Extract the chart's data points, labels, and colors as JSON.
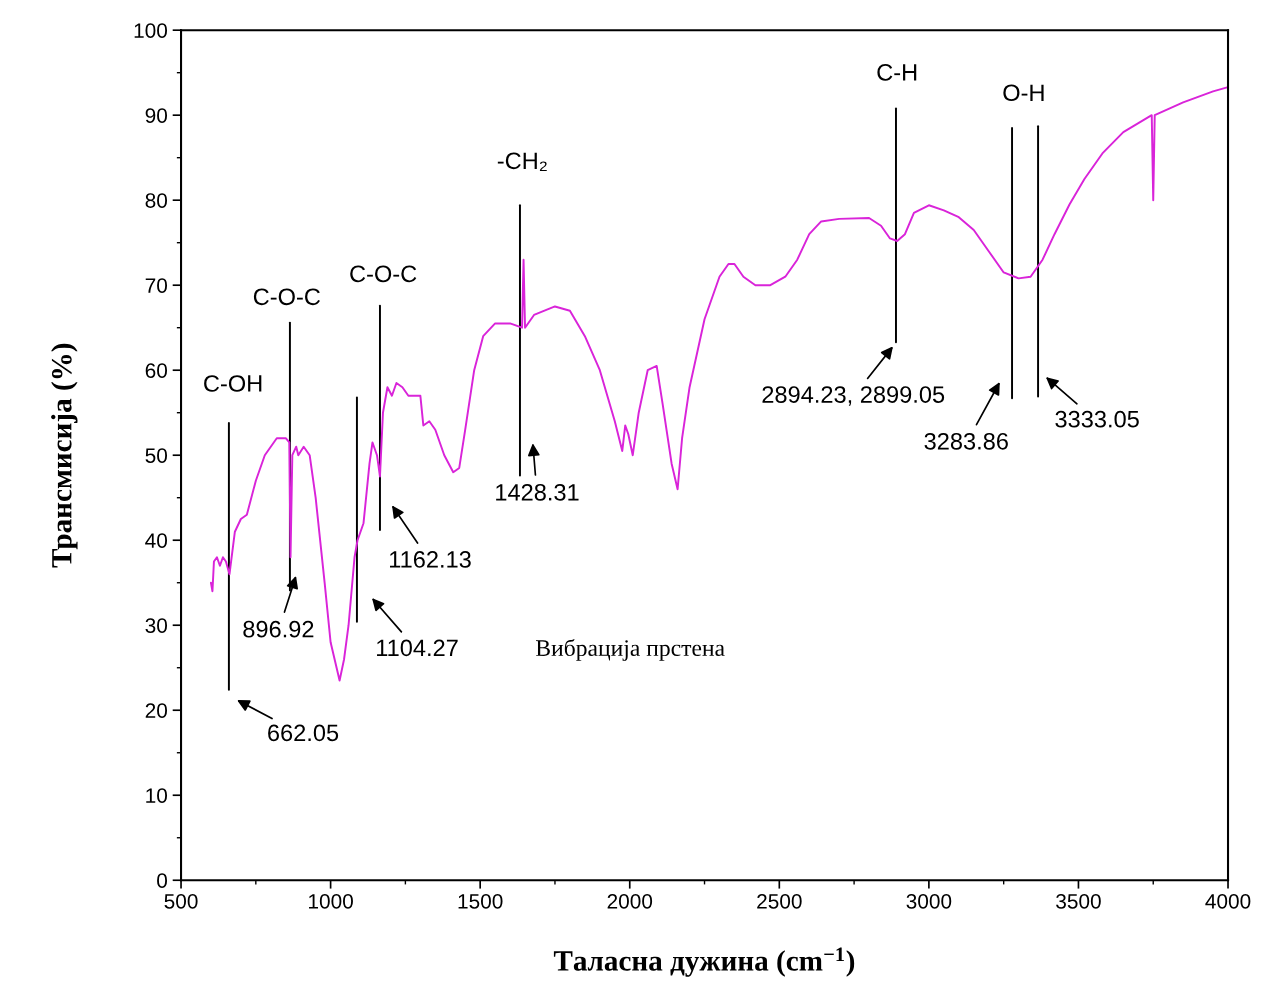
{
  "chart_data": {
    "type": "line",
    "xlabel": "Таласна дужина (cm$^{−1}$)",
    "ylabel": "Трансмисија (%)",
    "xlim": [
      500,
      4000
    ],
    "xticks": [
      500,
      1000,
      1500,
      2000,
      2500,
      3000,
      3500,
      4000
    ],
    "ylim": [
      0,
      100
    ],
    "yticks": [
      0,
      10,
      20,
      30,
      40,
      50,
      60,
      70,
      80,
      90,
      100
    ],
    "grid": false,
    "legend": false,
    "series": [
      {
        "color": "#d924d9",
        "x": [
          600,
          605,
          610,
          620,
          630,
          640,
          650,
          662,
          680,
          700,
          720,
          750,
          780,
          820,
          850,
          862,
          866,
          872,
          885,
          892,
          910,
          930,
          950,
          980,
          1000,
          1020,
          1030,
          1045,
          1060,
          1080,
          1090,
          1110,
          1130,
          1140,
          1155,
          1165,
          1175,
          1190,
          1205,
          1220,
          1240,
          1260,
          1300,
          1310,
          1330,
          1350,
          1380,
          1410,
          1430,
          1450,
          1480,
          1510,
          1550,
          1600,
          1640,
          1645,
          1650,
          1680,
          1750,
          1800,
          1850,
          1900,
          1950,
          1975,
          1985,
          1995,
          2010,
          2030,
          2060,
          2090,
          2110,
          2140,
          2160,
          2175,
          2200,
          2250,
          2300,
          2330,
          2350,
          2380,
          2420,
          2470,
          2520,
          2560,
          2600,
          2640,
          2700,
          2800,
          2840,
          2870,
          2894,
          2920,
          2950,
          3000,
          3050,
          3100,
          3150,
          3200,
          3250,
          3300,
          3340,
          3380,
          3420,
          3470,
          3520,
          3580,
          3650,
          3745,
          3750,
          3755,
          3850,
          3950,
          4000
        ],
        "values": [
          35,
          34,
          37.5,
          38,
          37,
          38,
          37.5,
          36,
          41,
          42.5,
          43,
          47,
          50,
          52,
          52,
          51.5,
          38,
          50,
          51,
          50,
          51,
          50,
          45,
          35,
          28,
          25,
          23.5,
          26,
          30,
          38,
          40,
          42,
          49,
          51.5,
          50,
          47.5,
          55,
          58,
          57,
          58.5,
          58,
          57,
          57,
          53.5,
          54,
          53,
          50,
          48,
          48.5,
          53,
          60,
          64,
          65.5,
          65.5,
          65,
          73,
          65,
          66.5,
          67.5,
          67,
          64,
          60,
          54,
          50.5,
          53.5,
          52.5,
          50,
          55,
          60,
          60.5,
          56,
          49,
          46,
          52,
          58,
          66,
          71,
          72.5,
          72.5,
          71,
          70,
          70,
          71,
          73,
          76,
          77.5,
          77.8,
          77.9,
          77,
          75.5,
          75.2,
          76,
          78.5,
          79.4,
          78.8,
          78,
          76.5,
          74,
          71.5,
          70.8,
          71,
          73,
          76,
          79.5,
          82.5,
          85.5,
          88,
          90,
          80,
          90,
          91.5,
          92.8,
          93.3
        ]
      },
      {
        "color": "#000000",
        "x": [
          660,
          660
        ],
        "values": [
          53.8,
          22.4
        ]
      },
      {
        "color": "#000000",
        "x": [
          864,
          864
        ],
        "values": [
          65.6,
          34.1
        ]
      },
      {
        "color": "#000000",
        "x": [
          1088,
          1088
        ],
        "values": [
          56.8,
          30.4
        ]
      },
      {
        "color": "#000000",
        "x": [
          1165,
          1165
        ],
        "values": [
          67.6,
          41.2
        ]
      },
      {
        "color": "#000000",
        "x": [
          1633,
          1633
        ],
        "values": [
          79.4,
          47.6
        ]
      },
      {
        "color": "#000000",
        "x": [
          2890,
          2890
        ],
        "values": [
          90.8,
          63.3
        ]
      },
      {
        "color": "#000000",
        "x": [
          3278,
          3278
        ],
        "values": [
          88.5,
          56.7
        ]
      },
      {
        "color": "#000000",
        "x": [
          3365,
          3365
        ],
        "values": [
          88.7,
          56.9
        ]
      }
    ],
    "annotations": [
      "C-OH",
      "C-O-C",
      "C-O-C",
      "-CH₂",
      "C-H",
      "O-H",
      "Вибрација прстена",
      "662.05",
      "896.92",
      "1104.27",
      "1162.13",
      "1428.31",
      "2894.23, 2899.05",
      "3283.86",
      "3333.05"
    ]
  }
}
